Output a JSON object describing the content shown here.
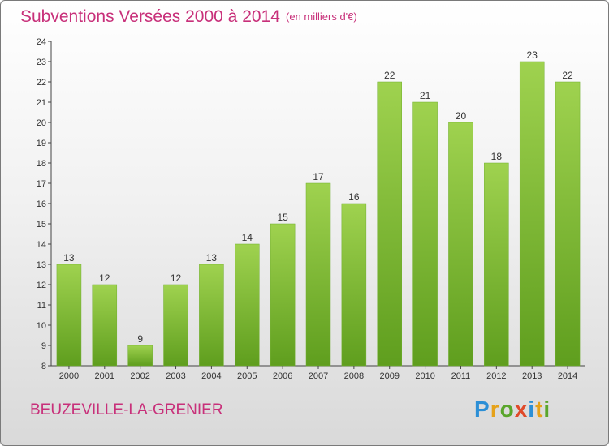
{
  "header": {
    "title": "Subventions Versées 2000 à 2014",
    "subtitle": "(en milliers d'€)"
  },
  "footer": {
    "commune": "BEUZEVILLE-LA-GRENIER",
    "logo_letters": [
      "P",
      "r",
      "o",
      "x",
      "i",
      "t",
      "i"
    ],
    "logo_colors": [
      "#2c8fd6",
      "#e6a21a",
      "#5aa62c",
      "#e04a2a",
      "#2c8fd6",
      "#e6a21a",
      "#5aa62c"
    ]
  },
  "colors": {
    "title": "#c8307a",
    "bar_top": "#9fd24f",
    "bar_bottom": "#5f9e1e"
  },
  "chart_data": {
    "type": "bar",
    "categories": [
      "2000",
      "2001",
      "2002",
      "2003",
      "2004",
      "2005",
      "2006",
      "2007",
      "2008",
      "2009",
      "2010",
      "2011",
      "2012",
      "2013",
      "2014"
    ],
    "values": [
      13,
      12,
      9,
      12,
      13,
      14,
      15,
      17,
      16,
      22,
      21,
      20,
      18,
      23,
      22
    ],
    "title": "Subventions Versées 2000 à 2014",
    "ylabel": "",
    "xlabel": "",
    "ylim": [
      8,
      24
    ],
    "yticks": [
      8,
      9,
      10,
      11,
      12,
      13,
      14,
      15,
      16,
      17,
      18,
      19,
      20,
      21,
      22,
      23,
      24
    ],
    "grid": false,
    "data_labels": true
  }
}
